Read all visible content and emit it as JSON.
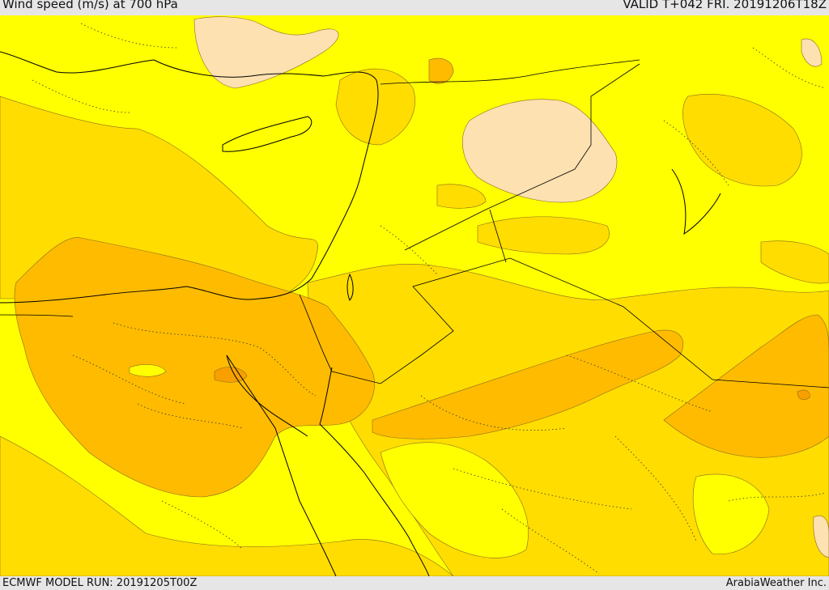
{
  "header": {
    "title": "Wind speed (m/s) at 700 hPa",
    "valid": "VALID T+042 FRI. 20191206T18Z"
  },
  "footer": {
    "model_run": "ECMWF MODEL RUN: 20191205T00Z",
    "credit": "ArabiaWeather Inc."
  },
  "colors": {
    "band_light": "#ffff00",
    "band_mid": "#ffdd00",
    "band_high": "#ffbb00",
    "band_max": "#f7a000",
    "band_low": "#fde1b0",
    "coast": "#000000",
    "contour": "#8a6a20"
  },
  "map": {
    "field": "wind speed",
    "level": "700 hPa",
    "overlays": [
      "coastlines",
      "country-borders",
      "admin-borders"
    ]
  }
}
